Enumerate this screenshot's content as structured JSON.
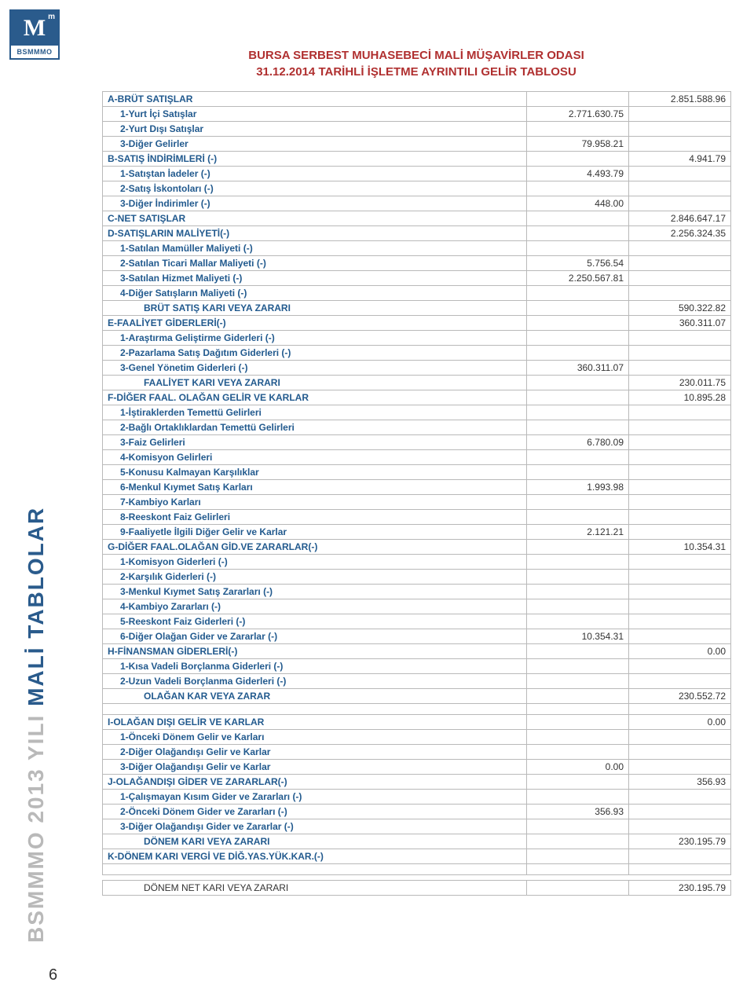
{
  "logo": {
    "letter": "M",
    "sup": "m",
    "brand": "BSMMMO"
  },
  "sidebar": {
    "gray_part": "BSMMMO 2013 YILI ",
    "blue_part": "MALİ TABLOLAR"
  },
  "page_number": "6",
  "title_line1": "BURSA SERBEST MUHASEBECİ MALİ MÜŞAVİRLER ODASI",
  "title_line2": "31.12.2014 TARİHLİ İŞLETME AYRINTILI GELİR TABLOSU",
  "rows": [
    {
      "label": "A-BRÜT SATIŞLAR",
      "c1": "",
      "c2": "2.851.588.96",
      "indent": 0
    },
    {
      "label": "1-Yurt İçi Satışlar",
      "c1": "2.771.630.75",
      "c2": "",
      "indent": 1
    },
    {
      "label": "2-Yurt Dışı  Satışlar",
      "c1": "",
      "c2": "",
      "indent": 1
    },
    {
      "label": "3-Diğer Gelirler",
      "c1": "79.958.21",
      "c2": "",
      "indent": 1
    },
    {
      "label": "B-SATIŞ İNDİRİMLERİ (-)",
      "c1": "",
      "c2": "4.941.79",
      "indent": 0
    },
    {
      "label": "1-Satıştan İadeler (-)",
      "c1": "4.493.79",
      "c2": "",
      "indent": 1
    },
    {
      "label": "2-Satış İskontoları (-)",
      "c1": "",
      "c2": "",
      "indent": 1
    },
    {
      "label": "3-Diğer İndirimler (-)",
      "c1": "448.00",
      "c2": "",
      "indent": 1
    },
    {
      "label": "C-NET SATIŞLAR",
      "c1": "",
      "c2": "2.846.647.17",
      "indent": 0
    },
    {
      "label": "D-SATIŞLARIN MALİYETİ(-)",
      "c1": "",
      "c2": "2.256.324.35",
      "indent": 0
    },
    {
      "label": "1-Satılan Mamüller Maliyeti (-)",
      "c1": "",
      "c2": "",
      "indent": 1
    },
    {
      "label": "2-Satılan Ticari Mallar Maliyeti (-)",
      "c1": "5.756.54",
      "c2": "",
      "indent": 1
    },
    {
      "label": "3-Satılan Hizmet Maliyeti (-)",
      "c1": "2.250.567.81",
      "c2": "",
      "indent": 1
    },
    {
      "label": "4-Diğer Satışların  Maliyeti (-)",
      "c1": "",
      "c2": "",
      "indent": 1
    },
    {
      "label": "BRÜT SATIŞ KARI VEYA ZARARI",
      "c1": "",
      "c2": "590.322.82",
      "indent": 2
    },
    {
      "label": "E-FAALİYET GİDERLERİ(-)",
      "c1": "",
      "c2": "360.311.07",
      "indent": 0
    },
    {
      "label": "1-Araştırma Geliştirme Giderleri (-)",
      "c1": "",
      "c2": "",
      "indent": 1
    },
    {
      "label": "2-Pazarlama Satış Dağıtım Giderleri (-)",
      "c1": "",
      "c2": "",
      "indent": 1
    },
    {
      "label": "3-Genel Yönetim Giderleri (-)",
      "c1": "360.311.07",
      "c2": "",
      "indent": 1
    },
    {
      "label": "FAALİYET KARI VEYA ZARARI",
      "c1": "",
      "c2": "230.011.75",
      "indent": 2
    },
    {
      "label": "F-DİĞER FAAL. OLAĞAN GELİR VE KARLAR",
      "c1": "",
      "c2": "10.895.28",
      "indent": 0
    },
    {
      "label": "1-İştiraklerden Temettü Gelirleri",
      "c1": "",
      "c2": "",
      "indent": 1
    },
    {
      "label": "2-Bağlı Ortaklıklardan Temettü Gelirleri",
      "c1": "",
      "c2": "",
      "indent": 1
    },
    {
      "label": "3-Faiz Gelirleri",
      "c1": "6.780.09",
      "c2": "",
      "indent": 1
    },
    {
      "label": "4-Komisyon Gelirleri",
      "c1": "",
      "c2": "",
      "indent": 1
    },
    {
      "label": "5-Konusu Kalmayan Karşılıklar",
      "c1": "",
      "c2": "",
      "indent": 1
    },
    {
      "label": "6-Menkul Kıymet Satış Karları",
      "c1": "1.993.98",
      "c2": "",
      "indent": 1
    },
    {
      "label": "7-Kambiyo Karları",
      "c1": "",
      "c2": "",
      "indent": 1
    },
    {
      "label": "8-Reeskont Faiz Gelirleri",
      "c1": "",
      "c2": "",
      "indent": 1
    },
    {
      "label": "9-Faaliyetle İlgili Diğer Gelir ve Karlar",
      "c1": "2.121.21",
      "c2": "",
      "indent": 1
    },
    {
      "label": "G-DİĞER FAAL.OLAĞAN GİD.VE ZARARLAR(-)",
      "c1": "",
      "c2": "10.354.31",
      "indent": 0
    },
    {
      "label": "1-Komisyon Giderleri (-)",
      "c1": "",
      "c2": "",
      "indent": 1
    },
    {
      "label": "2-Karşılık Giderleri (-)",
      "c1": "",
      "c2": "",
      "indent": 1
    },
    {
      "label": "3-Menkul Kıymet Satış Zararları (-)",
      "c1": "",
      "c2": "",
      "indent": 1
    },
    {
      "label": "4-Kambiyo Zararları (-)",
      "c1": "",
      "c2": "",
      "indent": 1
    },
    {
      "label": "5-Reeskont Faiz Giderleri (-)",
      "c1": "",
      "c2": "",
      "indent": 1
    },
    {
      "label": "6-Diğer Olağan Gider ve Zararlar (-)",
      "c1": "10.354.31",
      "c2": "",
      "indent": 1
    },
    {
      "label": "H-FİNANSMAN GİDERLERİ(-)",
      "c1": "",
      "c2": "0.00",
      "indent": 0
    },
    {
      "label": "1-Kısa Vadeli Borçlanma Giderleri  (-)",
      "c1": "",
      "c2": "",
      "indent": 1
    },
    {
      "label": "2-Uzun Vadeli Borçlanma Giderleri  (-)",
      "c1": "",
      "c2": "",
      "indent": 1
    },
    {
      "label": "OLAĞAN KAR VEYA ZARAR",
      "c1": "",
      "c2": "230.552.72",
      "indent": 2
    },
    {
      "gap": true
    },
    {
      "label": "I-OLAĞAN DIŞI GELİR VE KARLAR",
      "c1": "",
      "c2": "0.00",
      "indent": 0
    },
    {
      "label": "1-Önceki Dönem Gelir ve Karları",
      "c1": "",
      "c2": "",
      "indent": 1
    },
    {
      "label": "2-Diğer Olağandışı Gelir ve Karlar",
      "c1": "",
      "c2": "",
      "indent": 1
    },
    {
      "label": "3-Diğer Olağandışı Gelir ve Karlar",
      "c1": "0.00",
      "c2": "",
      "indent": 1
    },
    {
      "label": "J-OLAĞANDIŞI GİDER VE ZARARLAR(-)",
      "c1": "",
      "c2": "356.93",
      "indent": 0
    },
    {
      "label": "1-Çalışmayan Kısım Gider ve Zararları (-)",
      "c1": "",
      "c2": "",
      "indent": 1
    },
    {
      "label": "2-Önceki Dönem Gider ve Zararları (-)",
      "c1": "356.93",
      "c2": "",
      "indent": 1
    },
    {
      "label": "3-Diğer Olağandışı Gider ve Zararlar (-)",
      "c1": "",
      "c2": "",
      "indent": 1
    },
    {
      "label": "DÖNEM KARI VEYA ZARARI",
      "c1": "",
      "c2": "230.195.79",
      "indent": 2
    },
    {
      "label": "K-DÖNEM KARI VERGİ VE DİĞ.YAS.YÜK.KAR.(-)",
      "c1": "",
      "c2": "",
      "indent": 0
    },
    {
      "gap": true
    }
  ],
  "footer": {
    "label": "DÖNEM NET KARI VEYA ZARARI",
    "value": "230.195.79"
  },
  "colors": {
    "title_color": "#b03030",
    "label_color": "#225a8e",
    "border_color": "#b9b9b9",
    "sidebar_gray": "#b9b9b9",
    "sidebar_blue": "#2a5b8c"
  }
}
